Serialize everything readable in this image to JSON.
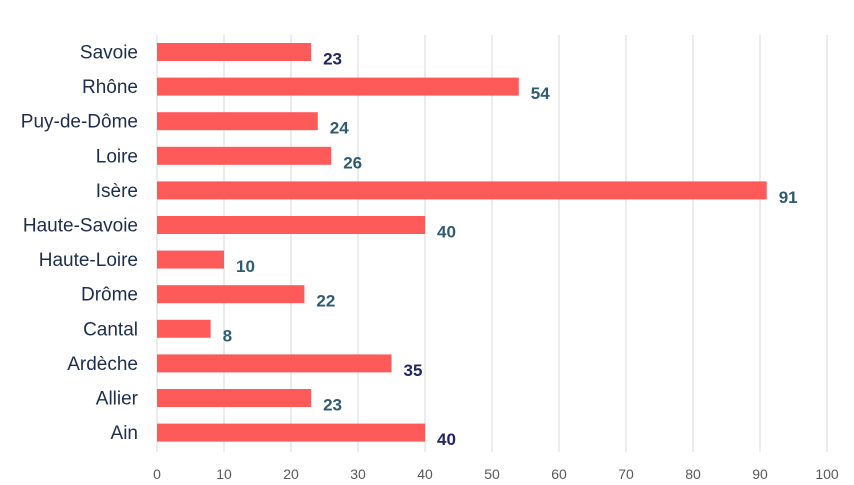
{
  "chart_data": {
    "type": "bar",
    "orientation": "horizontal",
    "categories": [
      "Savoie",
      "Rhône",
      "Puy-de-Dôme",
      "Loire",
      "Isère",
      "Haute-Savoie",
      "Haute-Loire",
      "Drôme",
      "Cantal",
      "Ardèche",
      "Allier",
      "Ain"
    ],
    "values": [
      23,
      54,
      24,
      26,
      91,
      40,
      10,
      22,
      8,
      35,
      23,
      40
    ],
    "xlim": [
      0,
      100
    ],
    "x_ticks": [
      0,
      10,
      20,
      30,
      40,
      50,
      60,
      70,
      80,
      90,
      100
    ],
    "grid": "vertical",
    "legend": "none",
    "colors": {
      "bar": "#ff5a5a",
      "grid": "#d9d9d9",
      "category_text": "#1f2d4d",
      "tick_text": "#595959",
      "data_label_dark": "#1f2566",
      "data_label_teal": "#2f5b73"
    },
    "data_label_tones": [
      "dark",
      "teal",
      "teal",
      "teal",
      "teal",
      "teal",
      "teal",
      "teal",
      "teal",
      "dark",
      "teal",
      "dark"
    ]
  }
}
